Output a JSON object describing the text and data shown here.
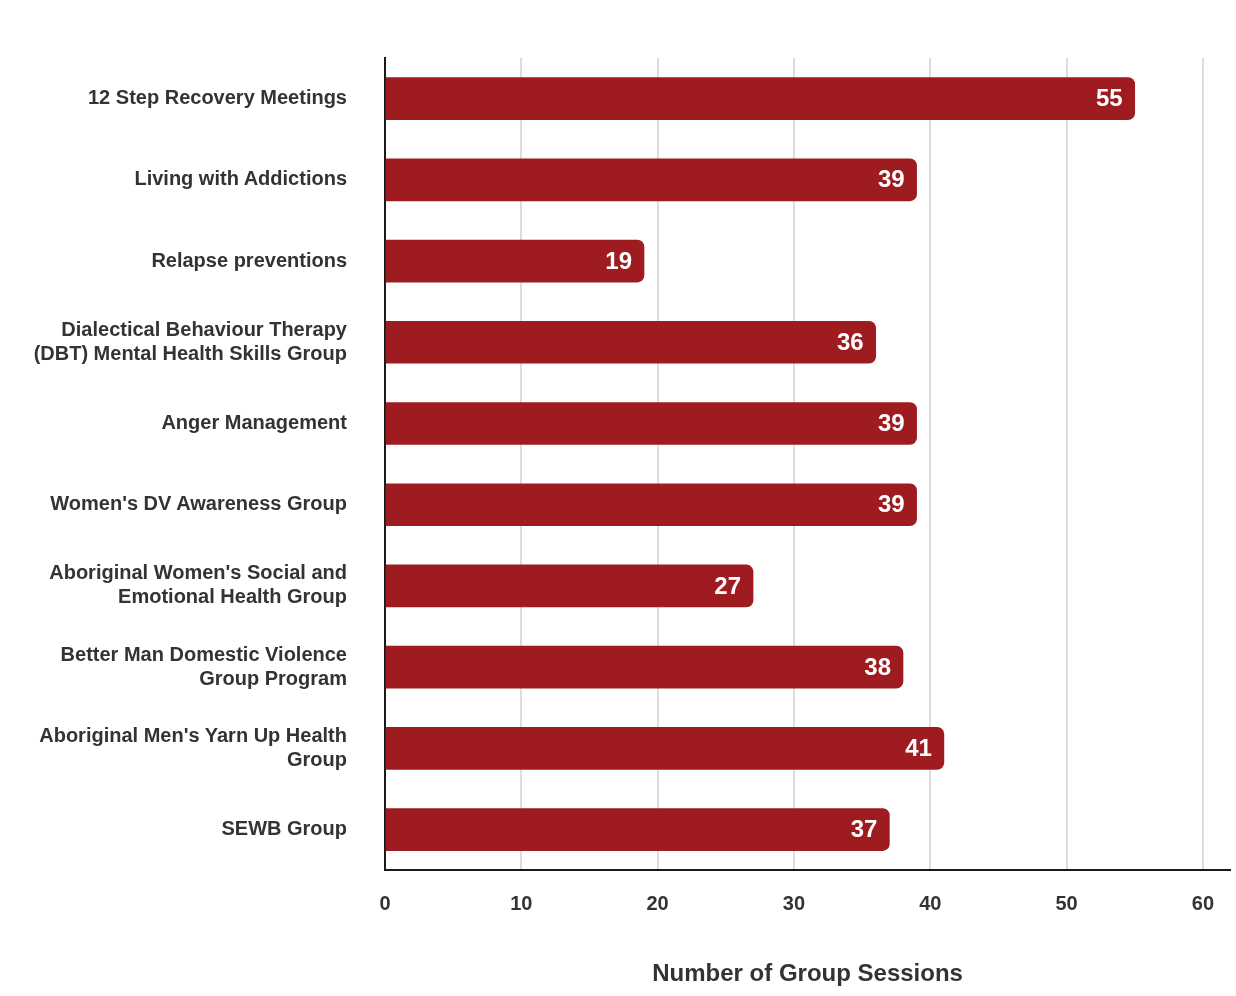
{
  "chart_data": {
    "type": "bar",
    "orientation": "horizontal",
    "categories": [
      "12 Step Recovery Meetings",
      "Living with Addictions",
      "Relapse preventions",
      "Dialectical Behaviour Therapy (DBT) Mental Health Skills Group",
      "Anger Management",
      "Women's DV Awareness Group",
      "Aboriginal Women's Social and Emotional Health Group",
      "Better Man Domestic Violence Group Program",
      "Aboriginal Men's Yarn Up Health Group",
      "SEWB Group"
    ],
    "values": [
      55,
      39,
      19,
      36,
      39,
      39,
      27,
      38,
      41,
      37
    ],
    "color": "#9e1c20",
    "xlabel": "Number of Group Sessions",
    "xlim": [
      0,
      62
    ],
    "xticks": [
      0,
      10,
      20,
      30,
      40,
      50,
      60
    ],
    "grid": "x",
    "legend": false,
    "data_labels": true
  }
}
